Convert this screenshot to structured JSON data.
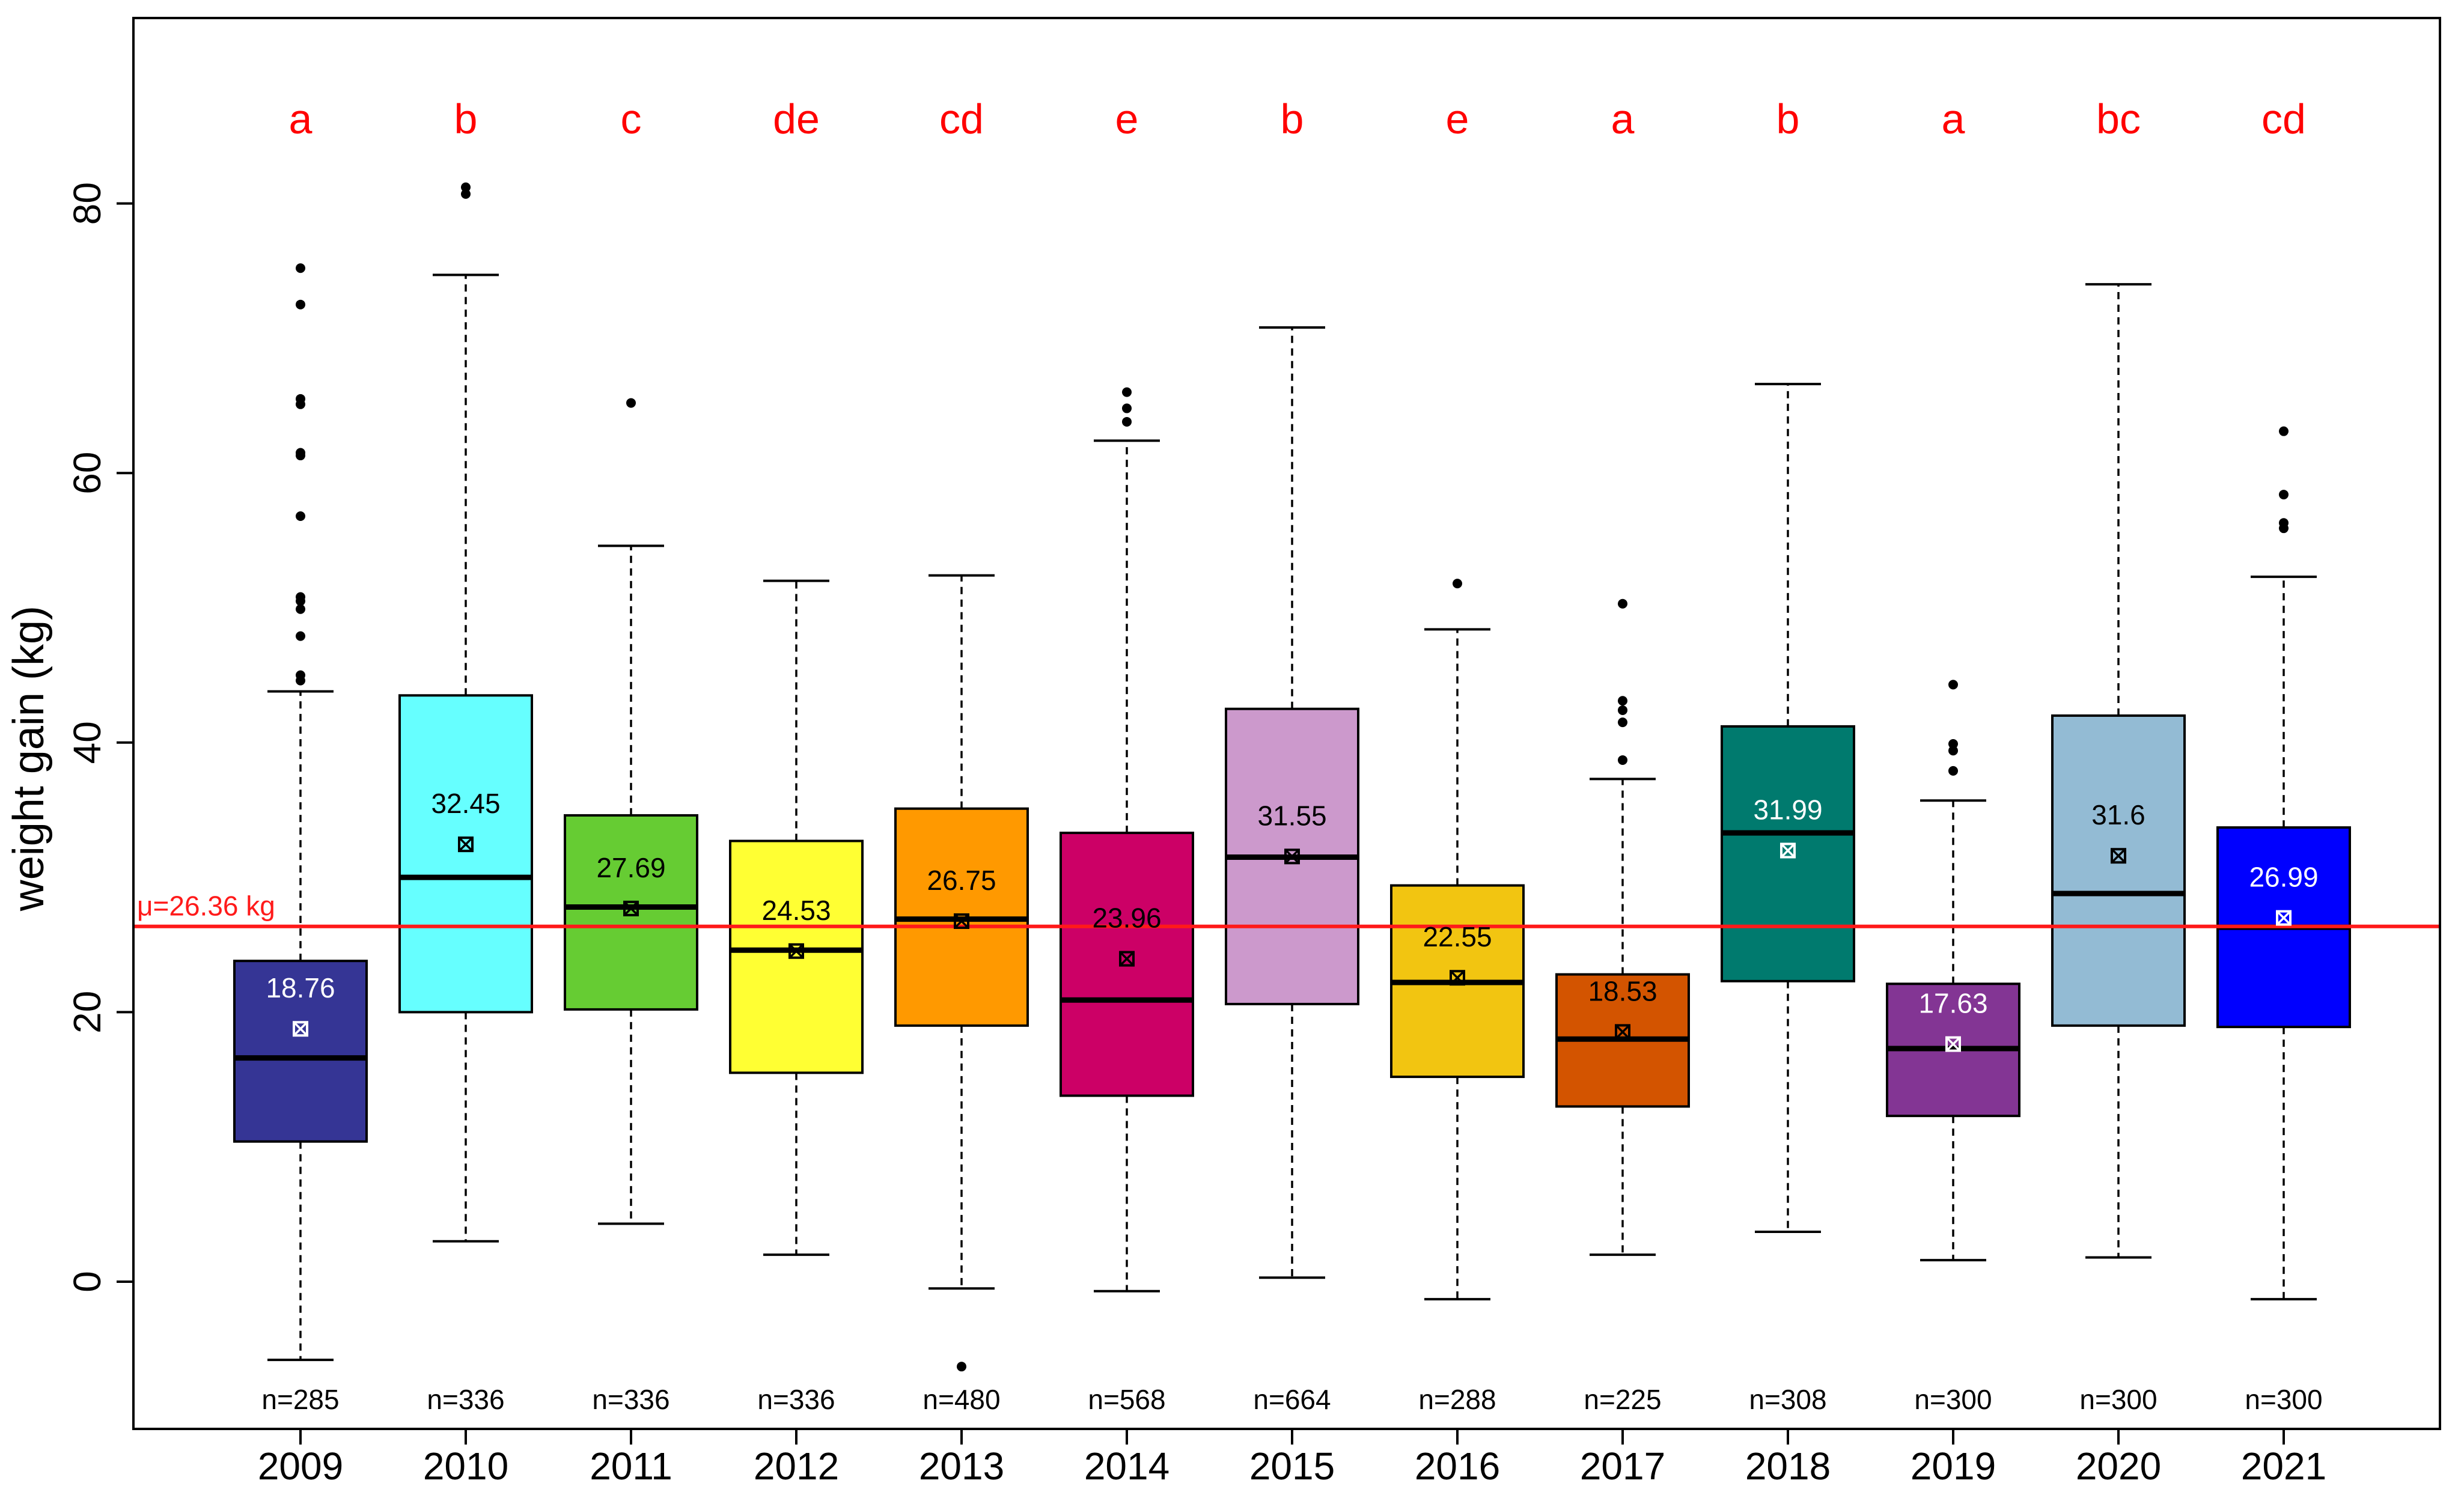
{
  "chart_data": {
    "type": "boxplot",
    "title": "",
    "xlabel": "",
    "ylabel": "weight gain (kg)",
    "ylim": [
      -11,
      94
    ],
    "yticks": [
      0,
      20,
      40,
      60,
      80
    ],
    "overall_mean": 26.36,
    "mean_label": "μ=26.36 kg",
    "colors": {
      "mean_line": "#ff1a1a",
      "letters": "#ff0000"
    },
    "categories": [
      "2009",
      "2010",
      "2011",
      "2012",
      "2013",
      "2014",
      "2015",
      "2016",
      "2017",
      "2018",
      "2019",
      "2020",
      "2021"
    ],
    "boxes": [
      {
        "year": "2009",
        "color": "#353595",
        "whisker_low": -5.8,
        "q1": 10.4,
        "median": 16.6,
        "q3": 23.8,
        "whisker_high": 43.8,
        "mean": 18.76,
        "mean_label": "18.76",
        "label_color": "#ffffff",
        "marker_color": "#ffffff",
        "letter": "a",
        "n_label": "n=285",
        "outliers": [
          44.6,
          45.0,
          47.9,
          49.9,
          50.5,
          50.8,
          56.8,
          61.3,
          61.5,
          65.1,
          65.5,
          72.5,
          75.2
        ]
      },
      {
        "year": "2010",
        "color": "#66ffff",
        "whisker_low": 3.0,
        "q1": 20.0,
        "median": 30.0,
        "q3": 43.5,
        "whisker_high": 74.7,
        "mean": 32.45,
        "mean_label": "32.45",
        "label_color": "#000000",
        "marker_color": "#000000",
        "letter": "b",
        "n_label": "n=336",
        "outliers": [
          80.7,
          81.2
        ]
      },
      {
        "year": "2011",
        "color": "#66cc33",
        "whisker_low": 4.3,
        "q1": 20.2,
        "median": 27.8,
        "q3": 34.6,
        "whisker_high": 54.6,
        "mean": 27.69,
        "mean_label": "27.69",
        "label_color": "#000000",
        "marker_color": "#000000",
        "letter": "c",
        "n_label": "n=336",
        "outliers": [
          65.2
        ]
      },
      {
        "year": "2012",
        "color": "#ffff33",
        "whisker_low": 2.0,
        "q1": 15.5,
        "median": 24.6,
        "q3": 32.7,
        "whisker_high": 52.0,
        "mean": 24.53,
        "mean_label": "24.53",
        "label_color": "#000000",
        "marker_color": "#000000",
        "letter": "de",
        "n_label": "n=336",
        "outliers": []
      },
      {
        "year": "2013",
        "color": "#ff9900",
        "whisker_low": -0.5,
        "q1": 19.0,
        "median": 26.9,
        "q3": 35.1,
        "whisker_high": 52.4,
        "mean": 26.75,
        "mean_label": "26.75",
        "label_color": "#000000",
        "marker_color": "#000000",
        "letter": "cd",
        "n_label": "n=480",
        "outliers": [
          -6.3
        ]
      },
      {
        "year": "2014",
        "color": "#cc0066",
        "whisker_low": -0.7,
        "q1": 13.8,
        "median": 20.9,
        "q3": 33.3,
        "whisker_high": 62.4,
        "mean": 23.96,
        "mean_label": "23.96",
        "label_color": "#000000",
        "marker_color": "#000000",
        "letter": "e",
        "n_label": "n=568",
        "outliers": [
          63.8,
          64.8,
          66.0
        ]
      },
      {
        "year": "2015",
        "color": "#cc99cc",
        "whisker_low": 0.3,
        "q1": 20.6,
        "median": 31.5,
        "q3": 42.5,
        "whisker_high": 70.8,
        "mean": 31.55,
        "mean_label": "31.55",
        "label_color": "#000000",
        "marker_color": "#000000",
        "letter": "b",
        "n_label": "n=664",
        "outliers": []
      },
      {
        "year": "2016",
        "color": "#f2c511",
        "whisker_low": -1.3,
        "q1": 15.2,
        "median": 22.2,
        "q3": 29.4,
        "whisker_high": 48.4,
        "mean": 22.55,
        "mean_label": "22.55",
        "label_color": "#000000",
        "marker_color": "#000000",
        "letter": "e",
        "n_label": "n=288",
        "outliers": [
          51.8
        ]
      },
      {
        "year": "2017",
        "color": "#d35400",
        "whisker_low": 2.0,
        "q1": 13.0,
        "median": 18.0,
        "q3": 22.8,
        "whisker_high": 37.3,
        "mean": 18.53,
        "mean_label": "18.53",
        "label_color": "#000000",
        "marker_color": "#000000",
        "letter": "a",
        "n_label": "n=225",
        "outliers": [
          38.7,
          41.5,
          42.4,
          43.1,
          50.3
        ]
      },
      {
        "year": "2018",
        "color": "#007a6e",
        "whisker_low": 3.7,
        "q1": 22.3,
        "median": 33.3,
        "q3": 41.2,
        "whisker_high": 66.6,
        "mean": 31.99,
        "mean_label": "31.99",
        "label_color": "#ffffff",
        "marker_color": "#ffffff",
        "letter": "b",
        "n_label": "n=308",
        "outliers": []
      },
      {
        "year": "2019",
        "color": "#833594",
        "whisker_low": 1.6,
        "q1": 12.3,
        "median": 17.3,
        "q3": 22.1,
        "whisker_high": 35.7,
        "mean": 17.63,
        "mean_label": "17.63",
        "label_color": "#ffffff",
        "marker_color": "#ffffff",
        "letter": "a",
        "n_label": "n=300",
        "outliers": [
          37.9,
          39.4,
          39.9,
          44.3
        ]
      },
      {
        "year": "2020",
        "color": "#93bbd4",
        "whisker_low": 1.8,
        "q1": 19.0,
        "median": 28.8,
        "q3": 42.0,
        "whisker_high": 74.0,
        "mean": 31.6,
        "mean_label": "31.6",
        "label_color": "#000000",
        "marker_color": "#000000",
        "letter": "bc",
        "n_label": "n=300",
        "outliers": []
      },
      {
        "year": "2021",
        "color": "#0000ff",
        "whisker_low": -1.3,
        "q1": 18.9,
        "median": 26.3,
        "q3": 33.7,
        "whisker_high": 52.3,
        "mean": 26.99,
        "mean_label": "26.99",
        "label_color": "#ffffff",
        "marker_color": "#ffffff",
        "letter": "cd",
        "n_label": "n=300",
        "outliers": [
          55.9,
          56.3,
          58.4,
          63.1
        ]
      }
    ]
  }
}
